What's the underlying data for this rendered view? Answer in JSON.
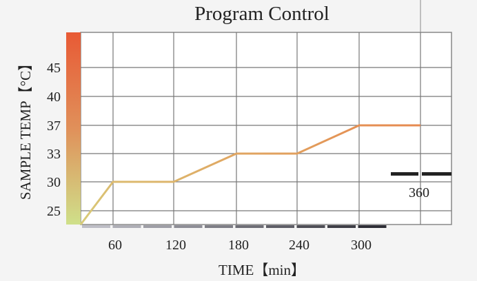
{
  "chart_data": {
    "type": "line",
    "title": "Program Control",
    "xlabel": "TIME【min】",
    "ylabel": "SAMPLE TEMP【°C】",
    "x_ticks": [
      "60",
      "120",
      "180",
      "240",
      "300",
      "360"
    ],
    "y_ticks": [
      "25",
      "30",
      "33",
      "37",
      "40",
      "45"
    ],
    "grid": true,
    "series": [
      {
        "x": [
          30,
          60,
          120,
          180,
          240,
          300,
          360
        ],
        "y": [
          23,
          30,
          30,
          33,
          33,
          37,
          37
        ]
      }
    ],
    "colors": {
      "line_start": "#d8cc7a",
      "line_end": "#e68a50",
      "temp_bar_top": "#e85a35",
      "temp_bar_bottom": "#cfe08a"
    }
  }
}
